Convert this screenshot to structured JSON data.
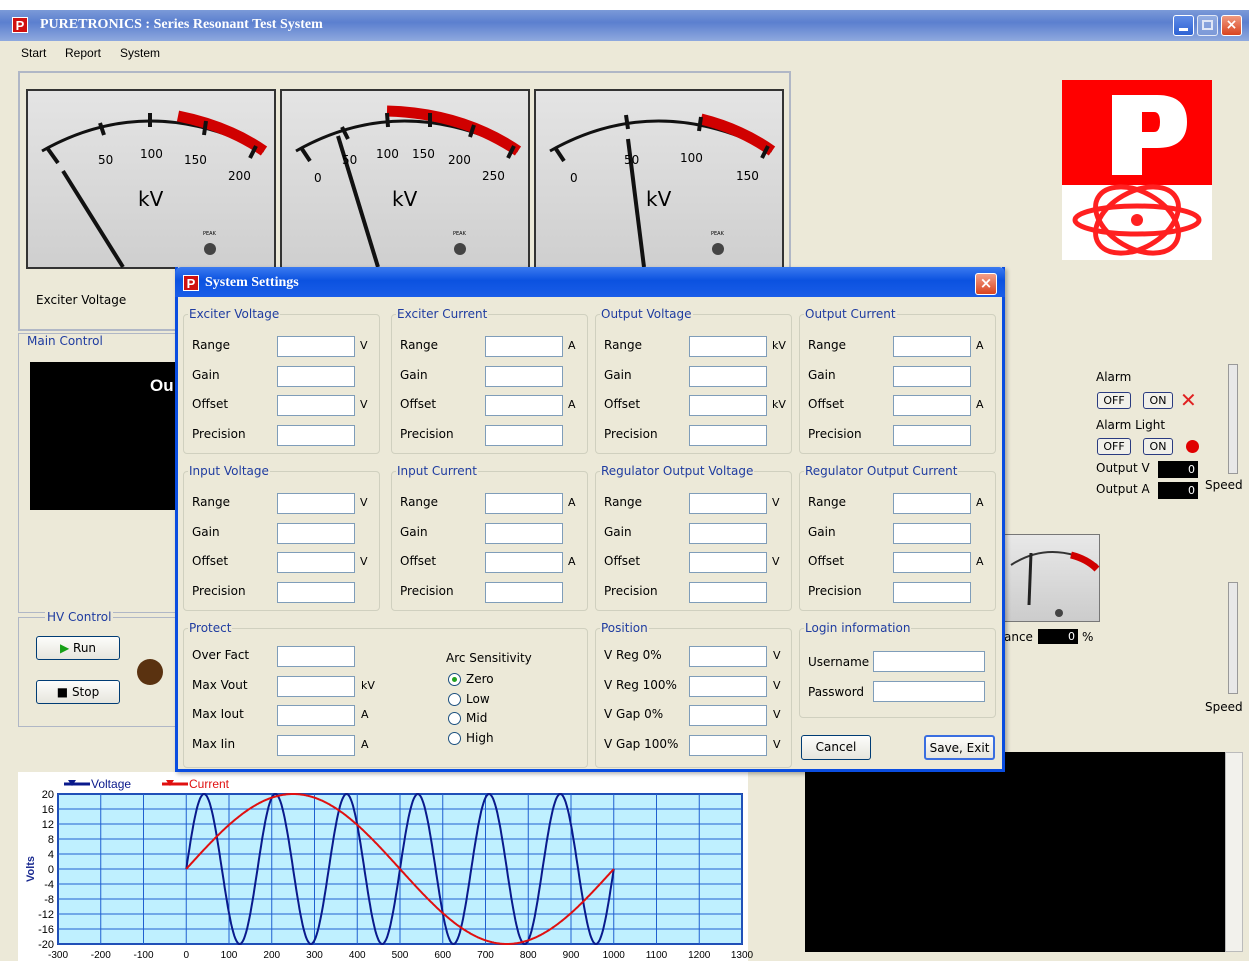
{
  "app": {
    "title": "PURETRONICS : Series Resonant Test System",
    "logo_letter": "P",
    "menu": [
      "Start",
      "Report",
      "System"
    ]
  },
  "meters": [
    {
      "ticks": [
        "50",
        "100",
        "150",
        "200"
      ],
      "unit": "kV",
      "peak": "PEAK"
    },
    {
      "ticks": [
        "0",
        "50",
        "100",
        "150",
        "200",
        "250"
      ],
      "unit": "kV",
      "peak": "PEAK"
    },
    {
      "ticks": [
        "0",
        "50",
        "100",
        "150"
      ],
      "unit": "kV",
      "peak": "PEAK"
    }
  ],
  "meter_label": "Exciter Voltage",
  "main_control": {
    "title": "Main Control",
    "display_text": "Ou"
  },
  "hv_control": {
    "title": "HV Control",
    "run": "Run",
    "stop": "Stop"
  },
  "alarm": {
    "alarm_label": "Alarm",
    "alarm_light_label": "Alarm Light",
    "off": "OFF",
    "on": "ON",
    "output_v_label": "Output V",
    "output_a_label": "Output A",
    "output_v": "0",
    "output_a": "0",
    "speed": "Speed",
    "speed2": "Speed"
  },
  "balance": {
    "label": "ance",
    "value": "0",
    "unit": "%"
  },
  "dialog": {
    "title": "System Settings",
    "logo_letter": "P",
    "close": "×",
    "groups": [
      {
        "title": "Exciter Voltage",
        "rows": [
          [
            "Range",
            "V"
          ],
          [
            "Gain",
            ""
          ],
          [
            "Offset",
            "V"
          ],
          [
            "Precision",
            ""
          ]
        ]
      },
      {
        "title": "Exciter Current",
        "rows": [
          [
            "Range",
            "A"
          ],
          [
            "Gain",
            ""
          ],
          [
            "Offset",
            "A"
          ],
          [
            "Precision",
            ""
          ]
        ]
      },
      {
        "title": "Output Voltage",
        "rows": [
          [
            "Range",
            "kV"
          ],
          [
            "Gain",
            ""
          ],
          [
            "Offset",
            "kV"
          ],
          [
            "Precision",
            ""
          ]
        ]
      },
      {
        "title": "Output Current",
        "rows": [
          [
            "Range",
            "A"
          ],
          [
            "Gain",
            ""
          ],
          [
            "Offset",
            "A"
          ],
          [
            "Precision",
            ""
          ]
        ]
      },
      {
        "title": "Input Voltage",
        "rows": [
          [
            "Range",
            "V"
          ],
          [
            "Gain",
            ""
          ],
          [
            "Offset",
            "V"
          ],
          [
            "Precision",
            ""
          ]
        ]
      },
      {
        "title": "Input Current",
        "rows": [
          [
            "Range",
            "A"
          ],
          [
            "Gain",
            ""
          ],
          [
            "Offset",
            "A"
          ],
          [
            "Precision",
            ""
          ]
        ]
      },
      {
        "title": "Regulator Output Voltage",
        "rows": [
          [
            "Range",
            "V"
          ],
          [
            "Gain",
            ""
          ],
          [
            "Offset",
            "V"
          ],
          [
            "Precision",
            ""
          ]
        ]
      },
      {
        "title": "Regulator Output Current",
        "rows": [
          [
            "Range",
            "A"
          ],
          [
            "Gain",
            ""
          ],
          [
            "Offset",
            "A"
          ],
          [
            "Precision",
            ""
          ]
        ]
      }
    ],
    "protect": {
      "title": "Protect",
      "rows": [
        [
          "Over Fact",
          ""
        ],
        [
          "Max Vout",
          "kV"
        ],
        [
          "Max Iout",
          "A"
        ],
        [
          "Max Iin",
          "A"
        ]
      ],
      "arc_title": "Arc Sensitivity",
      "arc_options": [
        "Zero",
        "Low",
        "Mid",
        "High"
      ],
      "arc_selected": "Zero"
    },
    "position": {
      "title": "Position",
      "rows": [
        [
          "V Reg 0%",
          "V"
        ],
        [
          "V Reg 100%",
          "V"
        ],
        [
          "V Gap 0%",
          "V"
        ],
        [
          "V Gap 100%",
          "V"
        ]
      ]
    },
    "login": {
      "title": "Login information",
      "username_label": "Username",
      "password_label": "Password",
      "username": "",
      "password": ""
    },
    "cancel": "Cancel",
    "save": "Save, Exit"
  },
  "colors": {
    "voltage": "#0a1a8c",
    "current": "#e01010",
    "titlebar": "#0b52e0",
    "logo_red": "#ff0000"
  },
  "chart_data": {
    "type": "line",
    "legend": [
      "Voltage",
      "Current"
    ],
    "ylabel": "Volts",
    "ylim": [
      -20,
      20
    ],
    "yticks": [
      "20",
      "16",
      "12",
      "8",
      "4",
      "0",
      "-4",
      "-8",
      "-12",
      "-16",
      "-20"
    ],
    "xlim": [
      -300,
      1300
    ],
    "xticks": [
      "-300",
      "-200",
      "-100",
      "0",
      "100",
      "200",
      "300",
      "400",
      "500",
      "600",
      "700",
      "800",
      "900",
      "1000",
      "1100",
      "1200",
      "1300"
    ],
    "series": [
      {
        "name": "Voltage",
        "x_start": 0,
        "x_end": 1000,
        "amplitude": 20,
        "cycles": 6,
        "phase_start": 0
      },
      {
        "name": "Current",
        "x_start": 0,
        "x_end": 1000,
        "amplitude": 20,
        "cycles": 1,
        "phase_start": 0
      }
    ]
  }
}
